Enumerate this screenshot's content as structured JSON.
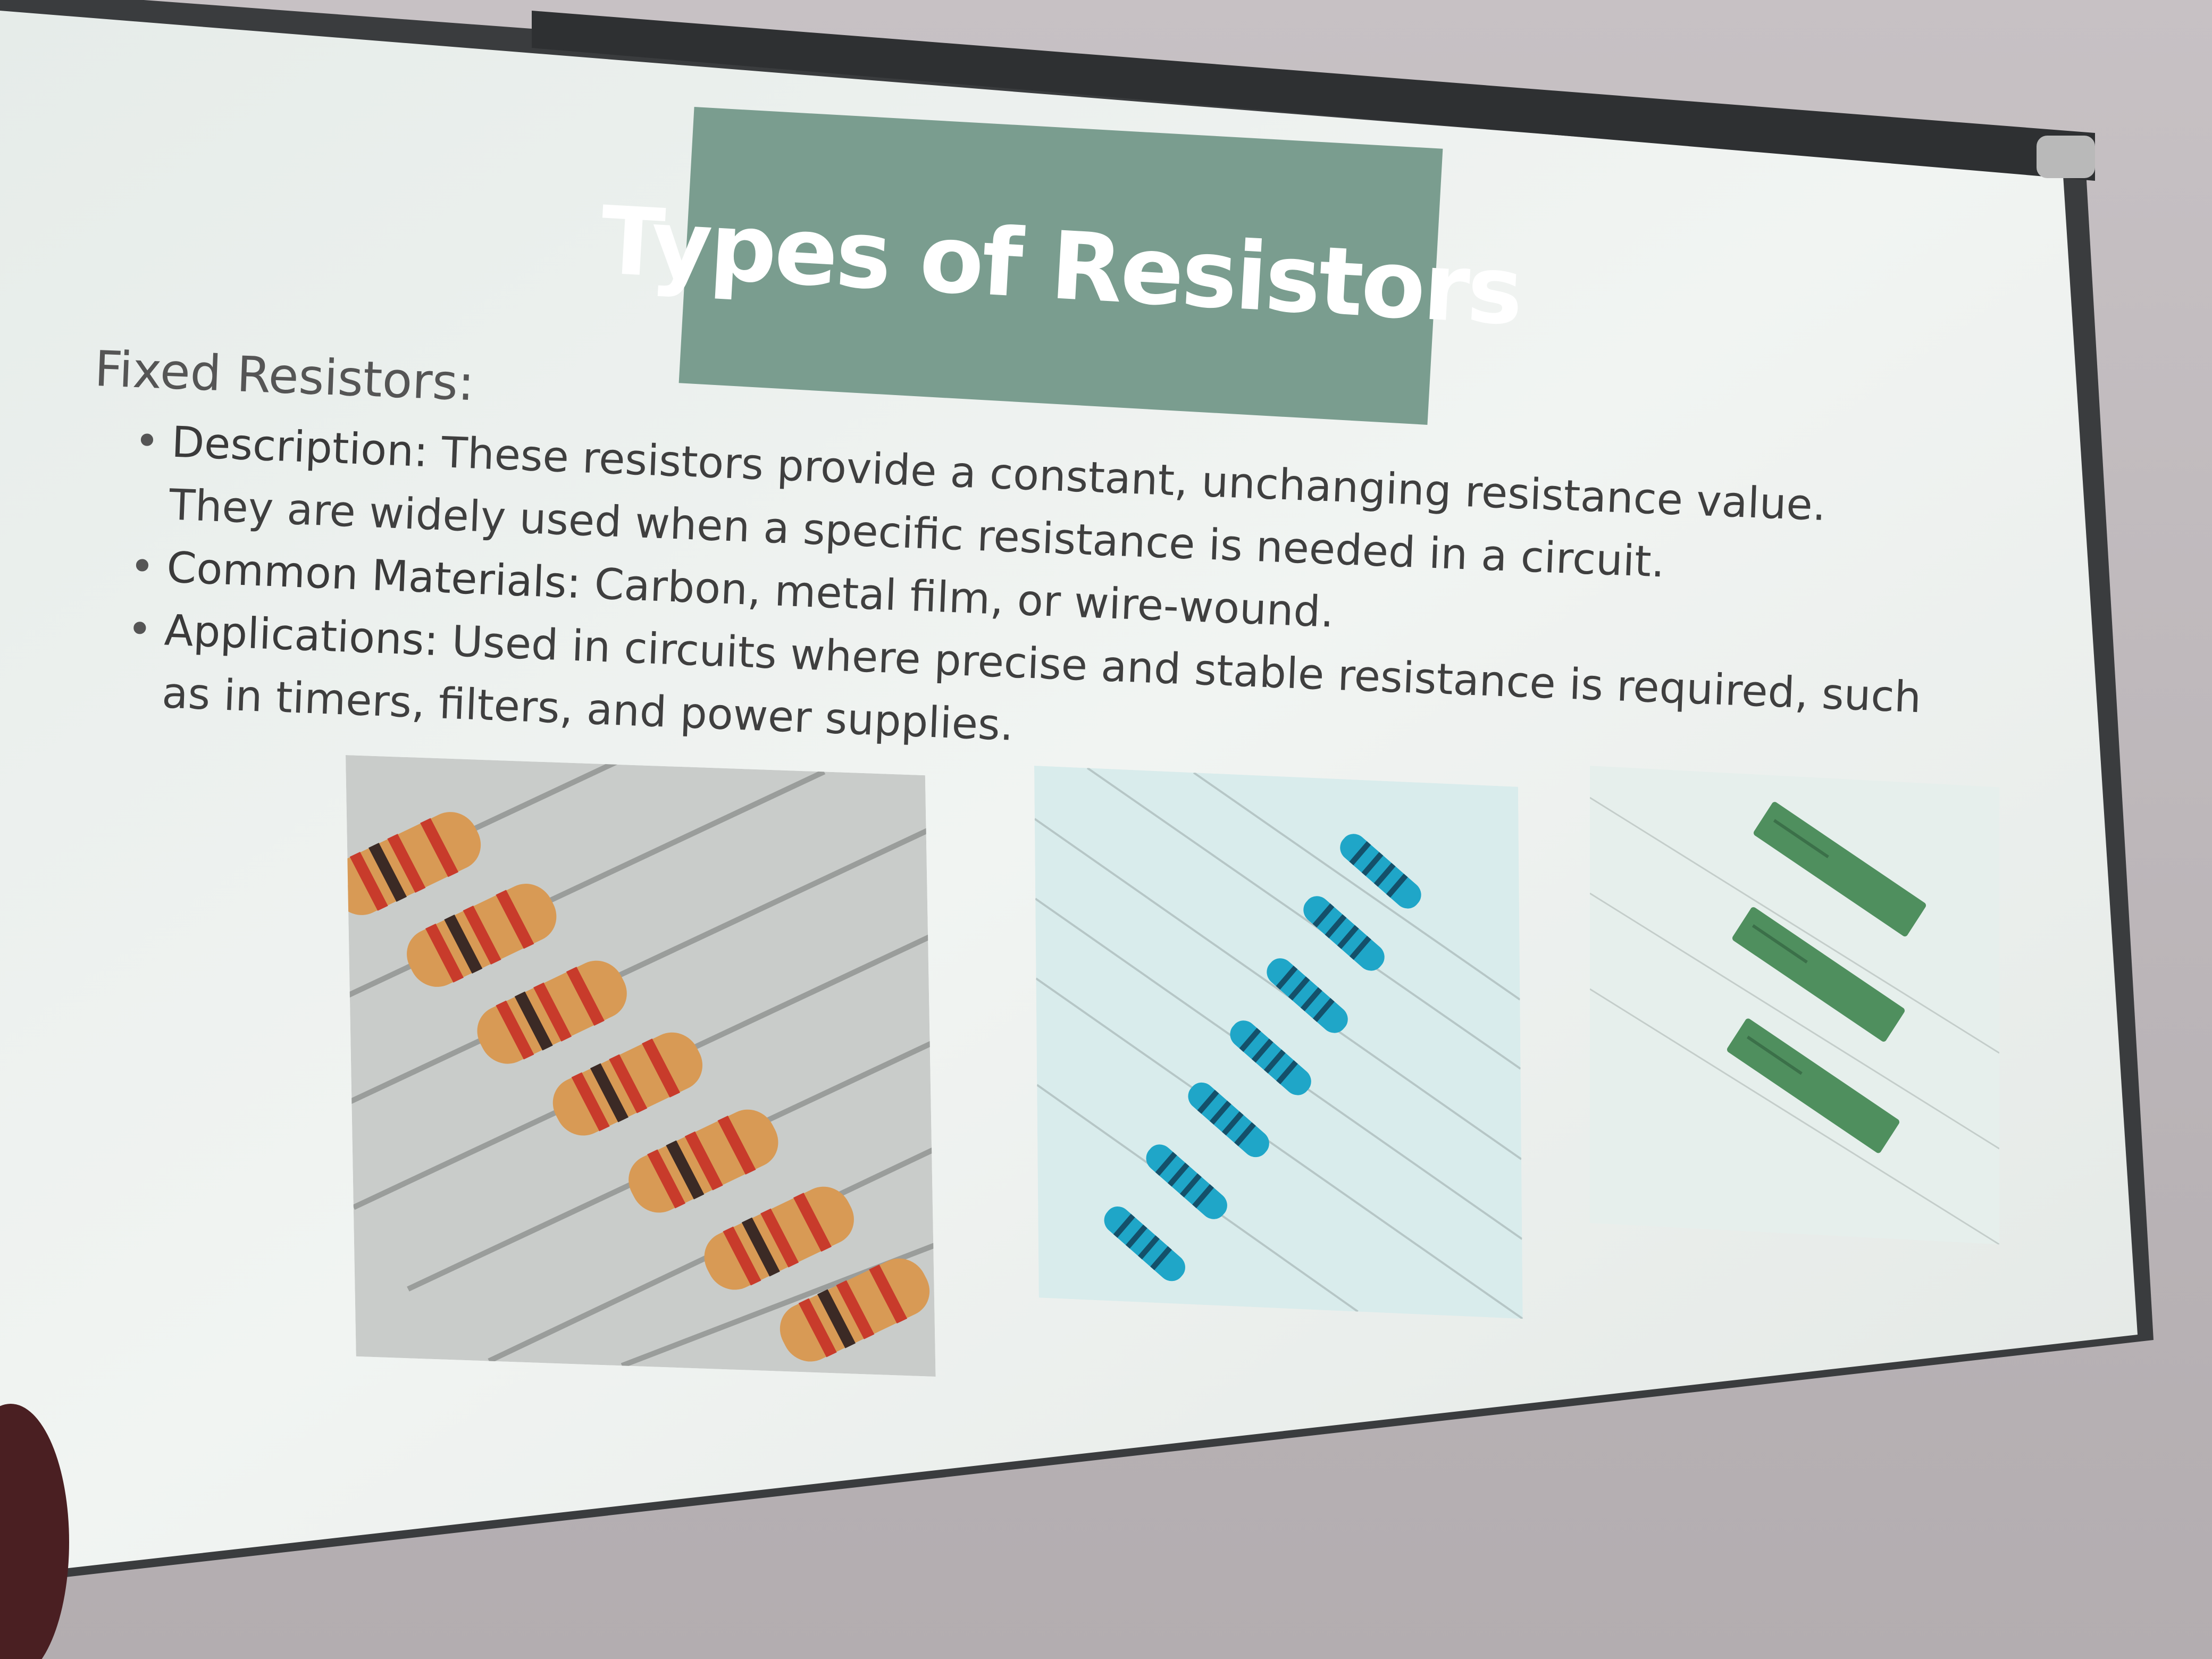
{
  "slide": {
    "title": "Types of Resistors",
    "heading": "Fixed Resistors:",
    "bullets": [
      {
        "label": "Description:",
        "text": " These resistors provide a constant, unchanging resistance value. They are widely used when a specific resistance is needed in a circuit."
      },
      {
        "label": "Common Materials:",
        "text": " Carbon, metal film, or wire-wound."
      },
      {
        "label": "Applications:",
        "text": " Used in circuits where precise and stable resistance is required, such as in timers, filters, and power supplies."
      }
    ],
    "bullet_char": "•"
  },
  "images": [
    {
      "name": "carbon-film-resistors-photo",
      "body_color": "#d89a55",
      "band_color": "#c83b2b"
    },
    {
      "name": "metal-film-resistors-photo",
      "body_color": "#1fa6c8",
      "band_color": "#14506a"
    },
    {
      "name": "wire-wound-resistors-photo",
      "body_color": "#4f8f5e",
      "band_color": "#3b7049"
    }
  ],
  "colors": {
    "wall": "#bdb7ba",
    "screen": "#eef1ef",
    "title_bg": "#7a9d8f",
    "title_text": "#ffffff",
    "body_text": "#3f3f3f"
  }
}
